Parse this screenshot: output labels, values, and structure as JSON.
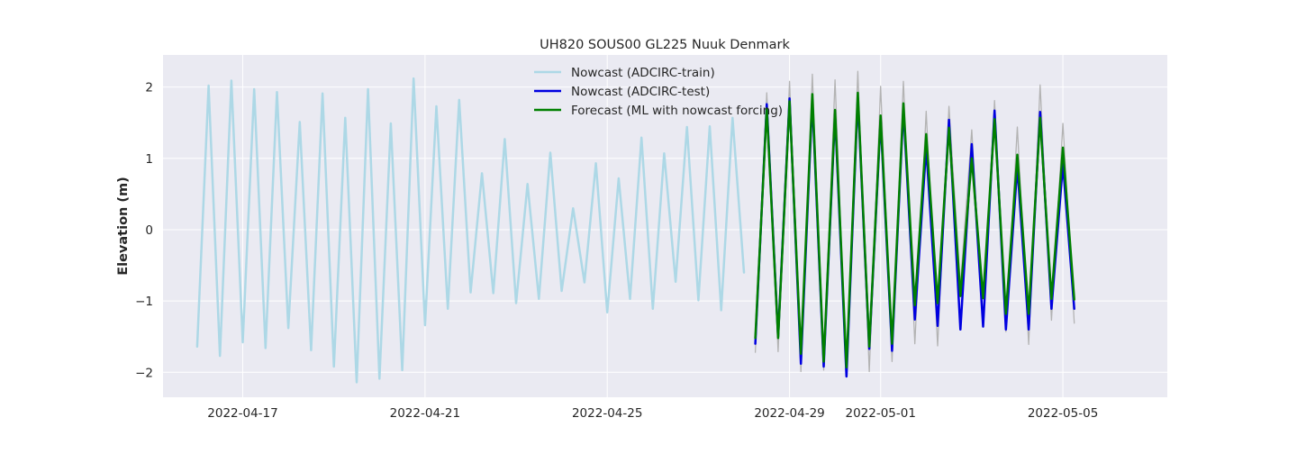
{
  "chart_data": {
    "type": "line",
    "title": "UH820 SOUS00 GL225 Nuuk Denmark",
    "xlabel": "",
    "ylabel": "Elevation (m)",
    "xlim": [
      "2022-04-15T06:00",
      "2022-05-07T07:00"
    ],
    "ylim": [
      -2.35,
      2.45
    ],
    "grid": true,
    "legend": "top-center",
    "x_ticks": [
      "2022-04-17",
      "2022-04-21",
      "2022-04-25",
      "2022-04-29",
      "2022-05-01",
      "2022-05-05"
    ],
    "y_ticks": [
      -2,
      -1,
      0,
      1,
      2
    ],
    "y_tick_labels": [
      "−2",
      "−1",
      "0",
      "1",
      "2"
    ],
    "series": [
      {
        "name": "Nowcast (ADCIRC-train)",
        "color": "#add8e6",
        "x_start": "2022-04-16T00:00",
        "x_step_hours": 6,
        "values": [
          -1.64,
          2.02,
          -1.77,
          2.09,
          -1.58,
          1.97,
          -1.66,
          1.93,
          -1.38,
          1.51,
          -1.69,
          1.91,
          -1.92,
          1.57,
          -2.14,
          1.97,
          -2.09,
          1.49,
          -1.97,
          2.12,
          -1.34,
          1.73,
          -1.11,
          1.82,
          -0.88,
          0.79,
          -0.89,
          1.27,
          -1.03,
          0.64,
          -0.97,
          1.08,
          -0.86,
          0.3,
          -0.74,
          0.93,
          -1.16,
          0.72,
          -0.97,
          1.29,
          -1.11,
          1.07,
          -0.73,
          1.44,
          -0.99,
          1.45,
          -1.13,
          1.57,
          -0.6
        ]
      },
      {
        "name": "",
        "color": "#b3b3b3",
        "x_start": "2022-04-28T06:00",
        "x_step_hours": 6,
        "values": [
          -1.72,
          1.92,
          -1.71,
          2.08,
          -1.99,
          2.18,
          -1.97,
          2.1,
          -2.04,
          2.22,
          -1.99,
          2.01,
          -1.85,
          2.08,
          -1.6,
          1.66,
          -1.63,
          1.73,
          -0.78,
          1.4,
          -1.36,
          1.81,
          -1.43,
          1.44,
          -1.61,
          2.03,
          -1.27,
          1.49,
          -1.31
        ]
      },
      {
        "name": "Nowcast (ADCIRC-test)",
        "color": "#0000e0",
        "x_start": "2022-04-28T06:00",
        "x_step_hours": 6,
        "values": [
          -1.6,
          1.76,
          -1.5,
          1.84,
          -1.88,
          1.82,
          -1.92,
          1.62,
          -2.06,
          1.85,
          -1.67,
          1.54,
          -1.7,
          1.7,
          -1.26,
          1.16,
          -1.35,
          1.54,
          -1.4,
          1.2,
          -1.36,
          1.67,
          -1.4,
          0.89,
          -1.4,
          1.65,
          -1.11,
          0.92,
          -1.11
        ]
      },
      {
        "name": "Forecast (ML with nowcast forcing)",
        "color": "#008000",
        "x_start": "2022-04-28T06:00",
        "x_step_hours": 6,
        "values": [
          -1.52,
          1.7,
          -1.52,
          1.8,
          -1.74,
          1.9,
          -1.85,
          1.68,
          -1.93,
          1.92,
          -1.64,
          1.6,
          -1.6,
          1.77,
          -1.06,
          1.34,
          -1.03,
          1.43,
          -0.93,
          1.0,
          -0.96,
          1.55,
          -1.18,
          1.05,
          -1.18,
          1.57,
          -0.97,
          1.15,
          -0.98
        ]
      }
    ]
  }
}
